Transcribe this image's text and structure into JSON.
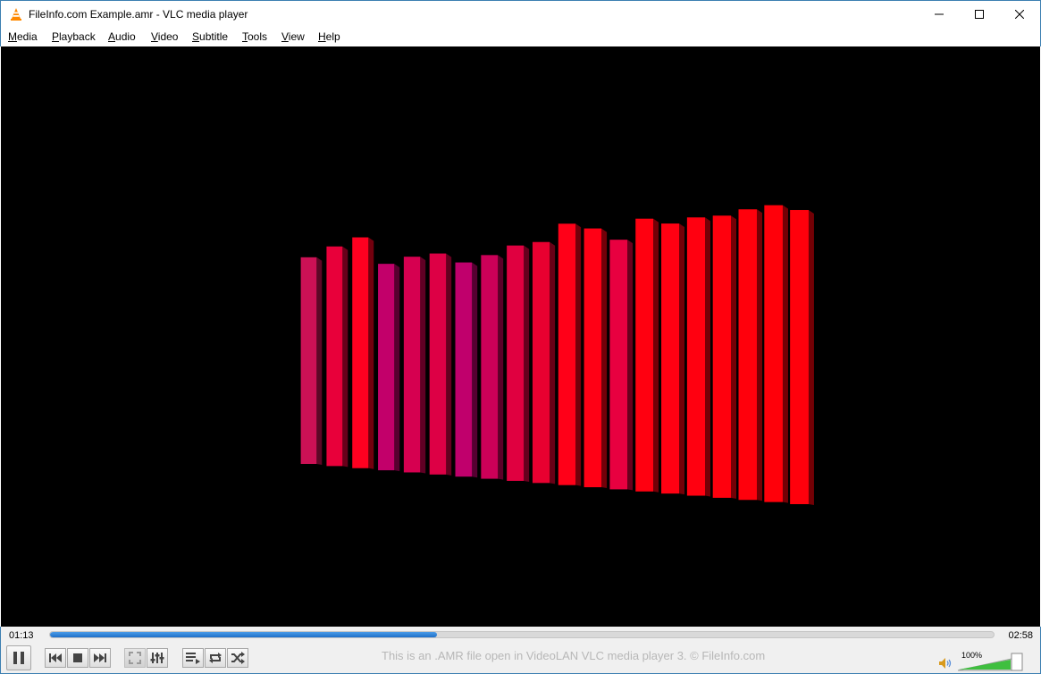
{
  "window": {
    "title": "FileInfo.com Example.amr - VLC media player"
  },
  "menu": [
    {
      "label": "Media",
      "accel": "M",
      "rest": "edia"
    },
    {
      "label": "Playback",
      "accel": "P",
      "rest": "layback"
    },
    {
      "label": "Audio",
      "accel": "A",
      "rest": "udio"
    },
    {
      "label": "Video",
      "accel": "V",
      "rest": "ideo"
    },
    {
      "label": "Subtitle",
      "accel": "S",
      "rest": "ubtitle"
    },
    {
      "label": "Tools",
      "accel": "T",
      "rest": "ools"
    },
    {
      "label": "View",
      "accel": "V",
      "rest": "iew"
    },
    {
      "label": "Help",
      "accel": "H",
      "rest": "elp"
    }
  ],
  "playback": {
    "current_time": "01:13",
    "total_time": "02:58",
    "progress_fraction": 0.41
  },
  "status_message": "This is an .AMR file open in VideoLAN VLC media player 3. © FileInfo.com",
  "volume": {
    "label": "100%",
    "level_fraction": 1.0
  },
  "visualizer": {
    "bar_levels": [
      0.7,
      0.76,
      0.81,
      0.68,
      0.72,
      0.74,
      0.7,
      0.74,
      0.79,
      0.81,
      0.9,
      0.88,
      0.83,
      0.93,
      0.91,
      0.94,
      0.95,
      0.98,
      1.0,
      0.98
    ],
    "colors": [
      "#cc1155",
      "#e8003a",
      "#ff0020",
      "#c2006a",
      "#d60050",
      "#dd0045",
      "#c0006c",
      "#cc0058",
      "#e00040",
      "#e80030",
      "#ff0018",
      "#ff0015",
      "#e80040",
      "#ff0010",
      "#ff0012",
      "#ff0010",
      "#ff000d",
      "#ff000c",
      "#ff000a",
      "#ff000c"
    ]
  },
  "colors": {
    "accent": "#1f6fc8",
    "window_border": "#3c7fb1",
    "volume_green": "#3fbf3f"
  }
}
